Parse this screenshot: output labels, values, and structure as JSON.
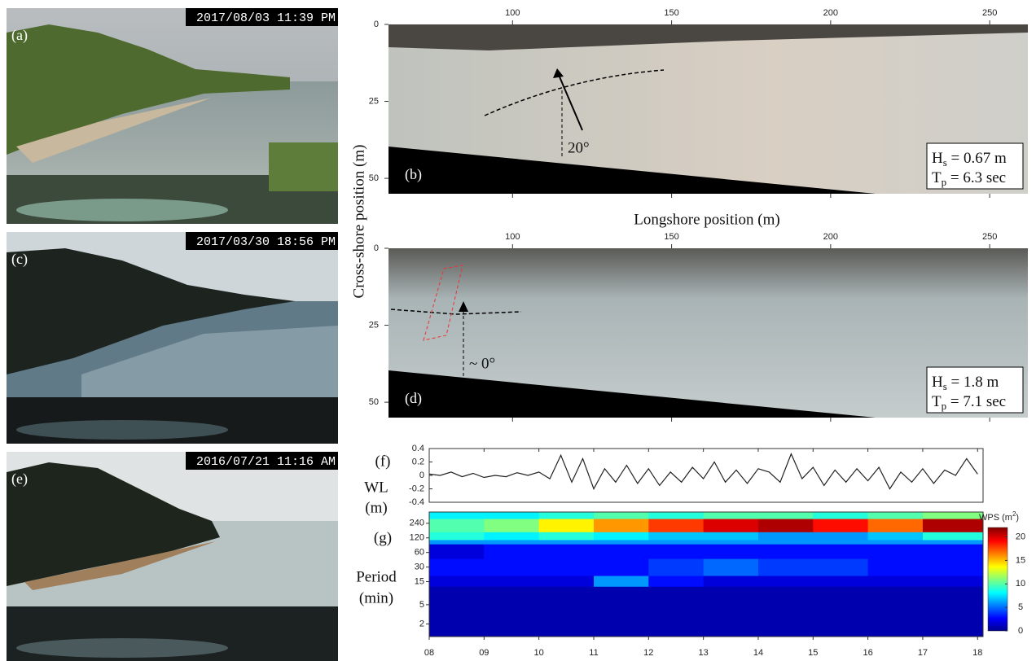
{
  "photos": [
    {
      "label": "(a)",
      "timestamp": "2017/08/03 11:39 PM"
    },
    {
      "label": "(c)",
      "timestamp": "2017/03/30 18:56 PM"
    },
    {
      "label": "(e)",
      "timestamp": "2016/07/21 11:16 AM"
    }
  ],
  "shared_labels": {
    "x_label": "Longshore position (m)",
    "y_label": "Cross-shore position (m)"
  },
  "chart_data": [
    {
      "type": "image",
      "panel": "(b)",
      "xlim": [
        61,
        262
      ],
      "ylim": [
        0,
        55
      ],
      "xticks": [
        100,
        150,
        200,
        250
      ],
      "yticks": [
        0,
        25,
        50
      ],
      "annotation": "20°",
      "wave_stats": [
        {
          "symbol": "H",
          "subscript": "s",
          "text": " = 0.67 m"
        },
        {
          "symbol": "T",
          "subscript": "p",
          "text": " = 6.3 sec"
        }
      ]
    },
    {
      "type": "image",
      "panel": "(d)",
      "xlim": [
        61,
        262
      ],
      "ylim": [
        0,
        55
      ],
      "xticks": [
        100,
        150,
        200,
        250
      ],
      "yticks": [
        0,
        25,
        50
      ],
      "annotation": "~ 0°",
      "wave_stats": [
        {
          "symbol": "H",
          "subscript": "s",
          "text": " = 1.8 m"
        },
        {
          "symbol": "T",
          "subscript": "p",
          "text": " = 7.1 sec"
        }
      ]
    },
    {
      "type": "line",
      "panel": "(f)",
      "y_label": [
        "WL",
        "(m)"
      ],
      "color": "#222222",
      "xlim": [
        8,
        18.1
      ],
      "ylim": [
        -0.4,
        0.4
      ],
      "yticks": [
        0.4,
        0.2,
        0,
        -0.2,
        -0.4
      ],
      "x": [
        8.0,
        8.2,
        8.4,
        8.6,
        8.8,
        9.0,
        9.2,
        9.4,
        9.6,
        9.8,
        10.0,
        10.2,
        10.4,
        10.6,
        10.8,
        11.0,
        11.2,
        11.4,
        11.6,
        11.8,
        12.0,
        12.2,
        12.4,
        12.6,
        12.8,
        13.0,
        13.2,
        13.4,
        13.6,
        13.8,
        14.0,
        14.2,
        14.4,
        14.6,
        14.8,
        15.0,
        15.2,
        15.4,
        15.6,
        15.8,
        16.0,
        16.2,
        16.4,
        16.6,
        16.8,
        17.0,
        17.2,
        17.4,
        17.6,
        17.8,
        18.0
      ],
      "values": [
        0.02,
        0.0,
        0.05,
        -0.02,
        0.03,
        -0.03,
        0.0,
        -0.02,
        0.04,
        0.0,
        0.05,
        -0.05,
        0.3,
        -0.1,
        0.25,
        -0.2,
        0.1,
        -0.1,
        0.15,
        -0.12,
        0.1,
        -0.15,
        0.05,
        -0.1,
        0.12,
        -0.05,
        0.2,
        -0.1,
        0.08,
        -0.12,
        0.1,
        0.05,
        -0.1,
        0.32,
        -0.05,
        0.12,
        -0.15,
        0.08,
        -0.1,
        0.1,
        -0.08,
        0.12,
        -0.2,
        0.05,
        -0.1,
        0.1,
        -0.12,
        0.08,
        0.0,
        0.25,
        0.02
      ]
    },
    {
      "type": "heatmap",
      "panel": "(g)",
      "y_label": [
        "Period",
        "(min)"
      ],
      "log_y": true,
      "colormap": "jet",
      "xlim": [
        8,
        18.1
      ],
      "ylim": [
        1.1,
        410
      ],
      "xticks": [
        {
          "value": 8,
          "label": "08"
        },
        {
          "value": 9,
          "label": "09"
        },
        {
          "value": 10,
          "label": "10"
        },
        {
          "value": 11,
          "label": "11"
        },
        {
          "value": 12,
          "label": "12"
        },
        {
          "value": 13,
          "label": "13"
        },
        {
          "value": 14,
          "label": "14"
        },
        {
          "value": 15,
          "label": "15"
        },
        {
          "value": 16,
          "label": "16"
        },
        {
          "value": 17,
          "label": "17"
        },
        {
          "value": 18,
          "label": "18"
        }
      ],
      "yticks": [
        240,
        120,
        60,
        30,
        15,
        5,
        2
      ],
      "x_bins": [
        8,
        9,
        10,
        11,
        12,
        13,
        14,
        15,
        16,
        17,
        18.1
      ],
      "y_bins": [
        1.1,
        12,
        20,
        45,
        90,
        110,
        160,
        300,
        410
      ],
      "z": [
        [
          1,
          1,
          1,
          1,
          1,
          1,
          1,
          1,
          1,
          1
        ],
        [
          2,
          2,
          2,
          6,
          3,
          2,
          2,
          2,
          2,
          2
        ],
        [
          3,
          3,
          3,
          3,
          4,
          5,
          4,
          4,
          3,
          3
        ],
        [
          2,
          3,
          3,
          3,
          3,
          3,
          3,
          3,
          3,
          3
        ],
        [
          6,
          6,
          6,
          6,
          6,
          6,
          6,
          6,
          6,
          6
        ],
        [
          9,
          8,
          9,
          8,
          7,
          7,
          6,
          6,
          7,
          9
        ],
        [
          10,
          11,
          14,
          16,
          18,
          20,
          21,
          19,
          17,
          21
        ],
        [
          8,
          8,
          9,
          10,
          9,
          10,
          10,
          9,
          10,
          11
        ]
      ],
      "colorbar": {
        "label": "WPS (m",
        "superscript": "2",
        "suffix": ")",
        "lim": [
          0,
          22
        ],
        "ticks": [
          0,
          5,
          10,
          15,
          20
        ]
      }
    }
  ]
}
